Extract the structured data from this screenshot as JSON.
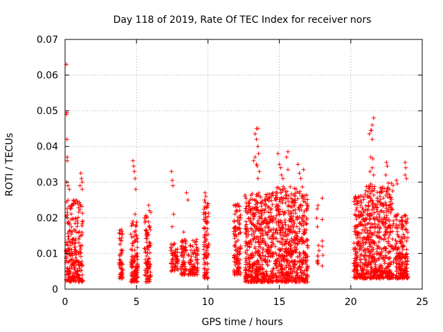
{
  "chart_data": {
    "type": "scatter",
    "title": "Day 118 of 2019, Rate Of TEC Index for receiver nors",
    "xlabel": "GPS time / hours",
    "ylabel": "ROTI / TECUs",
    "xlim": [
      0,
      25
    ],
    "ylim": [
      0,
      0.07
    ],
    "xticks": [
      0,
      5,
      10,
      15,
      20,
      25
    ],
    "xtick_labels": [
      "0",
      "5",
      "10",
      "15",
      "20",
      "25"
    ],
    "yticks": [
      0,
      0.01,
      0.02,
      0.03,
      0.04,
      0.05,
      0.06,
      0.07
    ],
    "ytick_labels": [
      "0",
      "0.01",
      "0.02",
      "0.03",
      "0.04",
      "0.05",
      "0.06",
      "0.07"
    ],
    "grid": true,
    "marker": "plus",
    "color": "#ff0000",
    "clusters": [
      {
        "x_start": 0.05,
        "x_end": 1.25,
        "y_min": 0.002,
        "y_max": 0.025,
        "count": 260
      },
      {
        "x_start": 3.8,
        "x_end": 4.05,
        "y_min": 0.003,
        "y_max": 0.017,
        "count": 60
      },
      {
        "x_start": 4.6,
        "x_end": 5.1,
        "y_min": 0.002,
        "y_max": 0.019,
        "count": 110
      },
      {
        "x_start": 5.55,
        "x_end": 6.0,
        "y_min": 0.002,
        "y_max": 0.022,
        "count": 90
      },
      {
        "x_start": 7.4,
        "x_end": 7.9,
        "y_min": 0.005,
        "y_max": 0.013,
        "count": 60
      },
      {
        "x_start": 8.1,
        "x_end": 8.5,
        "y_min": 0.004,
        "y_max": 0.014,
        "count": 60
      },
      {
        "x_start": 8.6,
        "x_end": 9.3,
        "y_min": 0.004,
        "y_max": 0.014,
        "count": 80
      },
      {
        "x_start": 9.7,
        "x_end": 10.05,
        "y_min": 0.003,
        "y_max": 0.025,
        "count": 90
      },
      {
        "x_start": 11.8,
        "x_end": 12.3,
        "y_min": 0.004,
        "y_max": 0.024,
        "count": 110
      },
      {
        "x_start": 12.6,
        "x_end": 14.6,
        "y_min": 0.002,
        "y_max": 0.027,
        "count": 520
      },
      {
        "x_start": 14.7,
        "x_end": 17.0,
        "y_min": 0.002,
        "y_max": 0.029,
        "count": 580
      },
      {
        "x_start": 17.6,
        "x_end": 17.8,
        "y_min": 0.006,
        "y_max": 0.025,
        "count": 12
      },
      {
        "x_start": 20.2,
        "x_end": 21.0,
        "y_min": 0.003,
        "y_max": 0.027,
        "count": 190
      },
      {
        "x_start": 21.0,
        "x_end": 22.2,
        "y_min": 0.003,
        "y_max": 0.03,
        "count": 300
      },
      {
        "x_start": 22.2,
        "x_end": 23.0,
        "y_min": 0.003,
        "y_max": 0.03,
        "count": 180
      },
      {
        "x_start": 23.1,
        "x_end": 24.0,
        "y_min": 0.003,
        "y_max": 0.021,
        "count": 200
      }
    ],
    "outliers": [
      {
        "x": 0.1,
        "y": 0.063
      },
      {
        "x": 0.12,
        "y": 0.0495
      },
      {
        "x": 0.1,
        "y": 0.049
      },
      {
        "x": 0.13,
        "y": 0.042
      },
      {
        "x": 0.15,
        "y": 0.037
      },
      {
        "x": 0.15,
        "y": 0.036
      },
      {
        "x": 0.12,
        "y": 0.03
      },
      {
        "x": 0.2,
        "y": 0.029
      },
      {
        "x": 0.3,
        "y": 0.028
      },
      {
        "x": 1.1,
        "y": 0.0325
      },
      {
        "x": 1.15,
        "y": 0.031
      },
      {
        "x": 1.2,
        "y": 0.03
      },
      {
        "x": 1.05,
        "y": 0.029
      },
      {
        "x": 1.2,
        "y": 0.028
      },
      {
        "x": 4.75,
        "y": 0.036
      },
      {
        "x": 4.8,
        "y": 0.0345
      },
      {
        "x": 4.85,
        "y": 0.033
      },
      {
        "x": 4.9,
        "y": 0.031
      },
      {
        "x": 4.95,
        "y": 0.028
      },
      {
        "x": 4.9,
        "y": 0.021
      },
      {
        "x": 5.85,
        "y": 0.0235
      },
      {
        "x": 5.9,
        "y": 0.022
      },
      {
        "x": 7.45,
        "y": 0.033
      },
      {
        "x": 7.5,
        "y": 0.0305
      },
      {
        "x": 7.55,
        "y": 0.029
      },
      {
        "x": 7.6,
        "y": 0.021
      },
      {
        "x": 7.5,
        "y": 0.0175
      },
      {
        "x": 8.5,
        "y": 0.027
      },
      {
        "x": 8.6,
        "y": 0.025
      },
      {
        "x": 8.3,
        "y": 0.016
      },
      {
        "x": 9.8,
        "y": 0.027
      },
      {
        "x": 9.85,
        "y": 0.026
      },
      {
        "x": 13.3,
        "y": 0.0435
      },
      {
        "x": 13.4,
        "y": 0.045
      },
      {
        "x": 13.5,
        "y": 0.045
      },
      {
        "x": 13.4,
        "y": 0.042
      },
      {
        "x": 13.5,
        "y": 0.04
      },
      {
        "x": 13.55,
        "y": 0.038
      },
      {
        "x": 13.3,
        "y": 0.037
      },
      {
        "x": 13.4,
        "y": 0.035
      },
      {
        "x": 13.6,
        "y": 0.033
      },
      {
        "x": 13.5,
        "y": 0.031
      },
      {
        "x": 13.2,
        "y": 0.036
      },
      {
        "x": 13.45,
        "y": 0.0345
      },
      {
        "x": 14.9,
        "y": 0.038
      },
      {
        "x": 15.0,
        "y": 0.035
      },
      {
        "x": 15.1,
        "y": 0.034
      },
      {
        "x": 15.15,
        "y": 0.032
      },
      {
        "x": 15.25,
        "y": 0.031
      },
      {
        "x": 15.5,
        "y": 0.037
      },
      {
        "x": 15.6,
        "y": 0.0385
      },
      {
        "x": 15.6,
        "y": 0.0335
      },
      {
        "x": 16.3,
        "y": 0.035
      },
      {
        "x": 16.4,
        "y": 0.0325
      },
      {
        "x": 16.5,
        "y": 0.031
      },
      {
        "x": 16.7,
        "y": 0.0335
      },
      {
        "x": 18.0,
        "y": 0.0255
      },
      {
        "x": 18.0,
        "y": 0.0195
      },
      {
        "x": 18.0,
        "y": 0.0135
      },
      {
        "x": 18.0,
        "y": 0.012
      },
      {
        "x": 18.05,
        "y": 0.0095
      },
      {
        "x": 18.0,
        "y": 0.0065
      },
      {
        "x": 21.3,
        "y": 0.0435
      },
      {
        "x": 21.4,
        "y": 0.0445
      },
      {
        "x": 21.5,
        "y": 0.046
      },
      {
        "x": 21.6,
        "y": 0.048
      },
      {
        "x": 21.5,
        "y": 0.042
      },
      {
        "x": 21.45,
        "y": 0.0445
      },
      {
        "x": 21.4,
        "y": 0.037
      },
      {
        "x": 21.5,
        "y": 0.034
      },
      {
        "x": 21.35,
        "y": 0.033
      },
      {
        "x": 21.55,
        "y": 0.0365
      },
      {
        "x": 21.6,
        "y": 0.032
      },
      {
        "x": 22.5,
        "y": 0.0355
      },
      {
        "x": 22.55,
        "y": 0.0345
      },
      {
        "x": 22.45,
        "y": 0.032
      },
      {
        "x": 22.6,
        "y": 0.0285
      },
      {
        "x": 22.5,
        "y": 0.0275
      },
      {
        "x": 23.2,
        "y": 0.0305
      },
      {
        "x": 23.25,
        "y": 0.0295
      },
      {
        "x": 23.8,
        "y": 0.0355
      },
      {
        "x": 23.85,
        "y": 0.034
      },
      {
        "x": 23.8,
        "y": 0.032
      },
      {
        "x": 23.9,
        "y": 0.031
      }
    ]
  }
}
